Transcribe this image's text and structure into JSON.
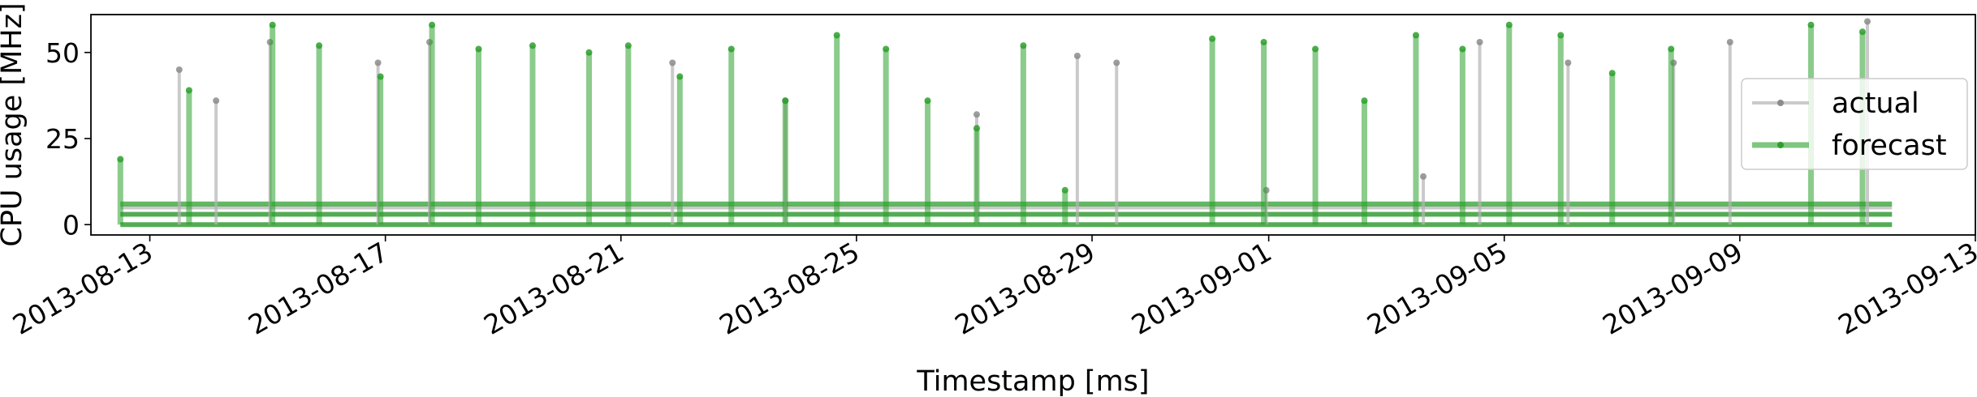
{
  "chart_data": {
    "type": "line",
    "title": "",
    "xlabel": "Timestamp [ms]",
    "ylabel": "CPU usage [MHz]",
    "x_range": [
      "2013-08-12",
      "2013-09-13"
    ],
    "ylim": [
      -3,
      61
    ],
    "x_ticks": [
      "2013-08-13",
      "2013-08-17",
      "2013-08-21",
      "2013-08-25",
      "2013-08-29",
      "2013-09-01",
      "2013-09-05",
      "2013-09-09",
      "2013-09-13"
    ],
    "y_ticks": [
      0,
      25,
      50
    ],
    "grid": false,
    "legend": {
      "position": "right",
      "entries": [
        "actual",
        "forecast"
      ]
    },
    "colors": {
      "actual": "#b3b3b3",
      "actual_marker": "#8c8c8c",
      "forecast": "#2ca02c"
    },
    "baseline": {
      "start": "2013-08-12T12:00",
      "end": "2013-09-11T14:00",
      "actual_levels": [
        0,
        3,
        5
      ],
      "forecast_levels": [
        0,
        3,
        6
      ]
    },
    "series": [
      {
        "name": "actual",
        "spikes": [
          {
            "t": "2013-08-13T12:00",
            "v": 45
          },
          {
            "t": "2013-08-14T03:00",
            "v": 36
          },
          {
            "t": "2013-08-15T01:00",
            "v": 53
          },
          {
            "t": "2013-08-16T21:00",
            "v": 47
          },
          {
            "t": "2013-08-17T18:00",
            "v": 53
          },
          {
            "t": "2013-08-21T21:00",
            "v": 47
          },
          {
            "t": "2013-08-23T19:00",
            "v": 36
          },
          {
            "t": "2013-08-27T01:00",
            "v": 32
          },
          {
            "t": "2013-08-28T18:00",
            "v": 49
          },
          {
            "t": "2013-08-29T10:00",
            "v": 47
          },
          {
            "t": "2013-08-31T23:00",
            "v": 10
          },
          {
            "t": "2013-09-03T15:00",
            "v": 14
          },
          {
            "t": "2013-09-04T14:00",
            "v": 53
          },
          {
            "t": "2013-09-06T02:00",
            "v": 47
          },
          {
            "t": "2013-09-07T21:00",
            "v": 47
          },
          {
            "t": "2013-09-08T20:00",
            "v": 53
          },
          {
            "t": "2013-09-11T04:00",
            "v": 59
          }
        ]
      },
      {
        "name": "forecast",
        "spikes": [
          {
            "t": "2013-08-12T12:00",
            "v": 19
          },
          {
            "t": "2013-08-13T16:00",
            "v": 39
          },
          {
            "t": "2013-08-15T02:00",
            "v": 58
          },
          {
            "t": "2013-08-15T21:00",
            "v": 52
          },
          {
            "t": "2013-08-16T22:00",
            "v": 43
          },
          {
            "t": "2013-08-17T19:00",
            "v": 58
          },
          {
            "t": "2013-08-18T14:00",
            "v": 51
          },
          {
            "t": "2013-08-19T12:00",
            "v": 52
          },
          {
            "t": "2013-08-20T11:00",
            "v": 50
          },
          {
            "t": "2013-08-21T03:00",
            "v": 52
          },
          {
            "t": "2013-08-22T00:00",
            "v": 43
          },
          {
            "t": "2013-08-22T21:00",
            "v": 51
          },
          {
            "t": "2013-08-23T19:00",
            "v": 36
          },
          {
            "t": "2013-08-24T16:00",
            "v": 55
          },
          {
            "t": "2013-08-25T12:00",
            "v": 51
          },
          {
            "t": "2013-08-26T05:00",
            "v": 36
          },
          {
            "t": "2013-08-27T01:00",
            "v": 28
          },
          {
            "t": "2013-08-27T20:00",
            "v": 52
          },
          {
            "t": "2013-08-28T13:00",
            "v": 10
          },
          {
            "t": "2013-08-31T01:00",
            "v": 54
          },
          {
            "t": "2013-08-31T22:00",
            "v": 53
          },
          {
            "t": "2013-09-01T19:00",
            "v": 51
          },
          {
            "t": "2013-09-02T15:00",
            "v": 36
          },
          {
            "t": "2013-09-03T12:00",
            "v": 55
          },
          {
            "t": "2013-09-04T07:00",
            "v": 51
          },
          {
            "t": "2013-09-05T02:00",
            "v": 58
          },
          {
            "t": "2013-09-05T23:00",
            "v": 55
          },
          {
            "t": "2013-09-06T20:00",
            "v": 44
          },
          {
            "t": "2013-09-07T20:00",
            "v": 51
          },
          {
            "t": "2013-09-10T05:00",
            "v": 58
          },
          {
            "t": "2013-09-11T02:00",
            "v": 56
          }
        ]
      }
    ]
  }
}
